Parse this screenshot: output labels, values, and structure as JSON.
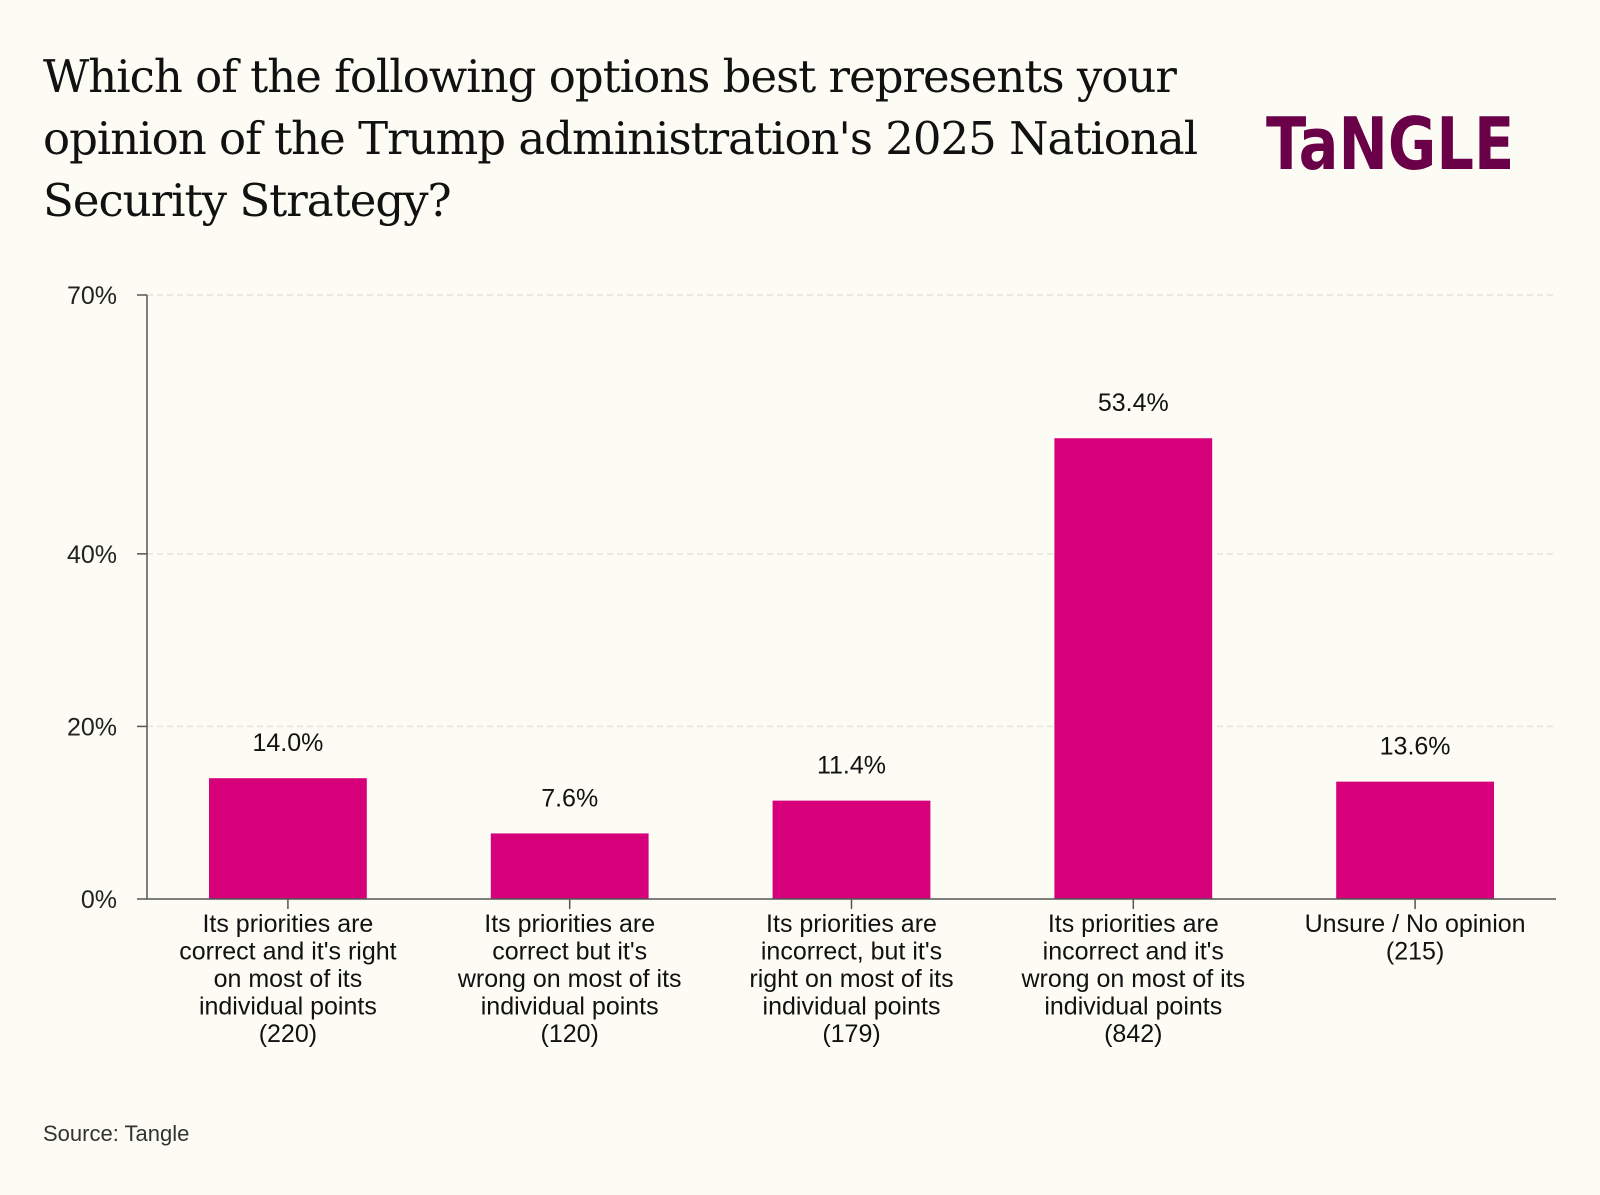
{
  "title": "Which of the following options best represents your opinion of the Trump administration's 2025 National Security Strategy?",
  "logo": {
    "text": "TaNGLE",
    "color": "#6a0047"
  },
  "source": "Source: Tangle",
  "colors": {
    "bar": "#d5007a",
    "background": "#fcfbf4",
    "axis": "#555555",
    "grid": "#e6e4da"
  },
  "chart_data": {
    "type": "bar",
    "title": "Which of the following options best represents your opinion of the Trump administration's 2025 National Security Strategy?",
    "xlabel": "",
    "ylabel": "",
    "ylim": [
      0,
      70
    ],
    "yticks": [
      0,
      20,
      40,
      70
    ],
    "ytick_labels": [
      "0%",
      "20%",
      "40%",
      "70%"
    ],
    "grid": true,
    "categories": [
      [
        "Its priorities are",
        "correct and it's right",
        "on most of its",
        "individual points",
        "(220)"
      ],
      [
        "Its priorities are",
        "correct but it's",
        "wrong on most of its",
        "individual points",
        "(120)"
      ],
      [
        "Its priorities are",
        "incorrect, but it's",
        "right on most of its",
        "individual points",
        "(179)"
      ],
      [
        "Its priorities are",
        "incorrect and it's",
        "wrong on most of its",
        "individual points",
        "(842)"
      ],
      [
        "Unsure / No opinion",
        "(215)"
      ]
    ],
    "counts": [
      220,
      120,
      179,
      842,
      215
    ],
    "values": [
      14.0,
      7.6,
      11.4,
      53.4,
      13.6
    ],
    "value_labels": [
      "14.0%",
      "7.6%",
      "11.4%",
      "53.4%",
      "13.6%"
    ]
  }
}
